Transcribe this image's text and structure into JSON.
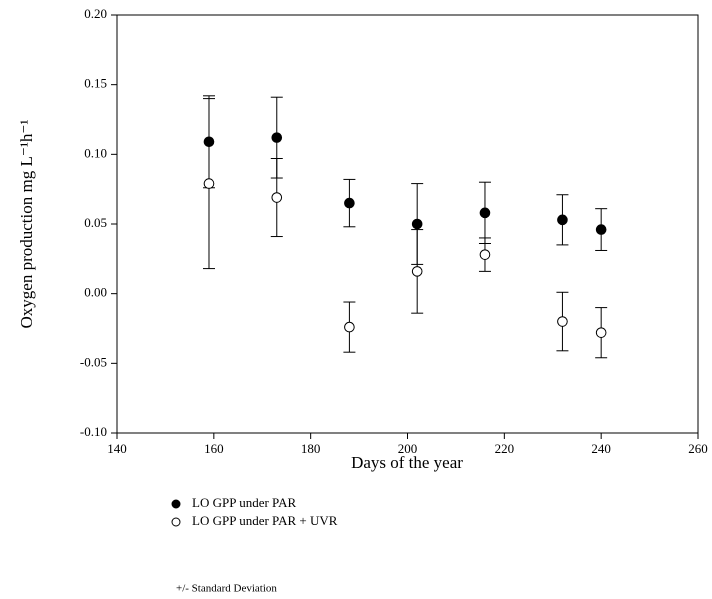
{
  "chart_data": {
    "type": "scatter",
    "x_label": "Days of the year",
    "y_label": "Oxygen production mg L⁻¹h⁻¹",
    "xlim": [
      140,
      260
    ],
    "xticks": [
      140,
      160,
      180,
      200,
      220,
      240,
      260
    ],
    "ylim": [
      -0.1,
      0.2
    ],
    "yticks": [
      {
        "value": -0.1,
        "label": "-0.10"
      },
      {
        "value": -0.05,
        "label": "-0.05"
      },
      {
        "value": 0,
        "label": "0.00"
      },
      {
        "value": 0.05,
        "label": "0.05"
      },
      {
        "value": 0.1,
        "label": "0.10"
      },
      {
        "value": 0.15,
        "label": "0.15"
      },
      {
        "value": 0.2,
        "label": "0.20"
      }
    ],
    "x": [
      159,
      173,
      188,
      202,
      216,
      232,
      240
    ],
    "series": [
      {
        "name": "LO GPP under PAR",
        "color": "#000000",
        "filled": true,
        "values": [
          0.109,
          0.112,
          0.065,
          0.05,
          0.058,
          0.053,
          0.046
        ],
        "errors": [
          0.033,
          0.029,
          0.017,
          0.029,
          0.022,
          0.018,
          0.015
        ]
      },
      {
        "name": "LO GPP under  PAR + UVR",
        "color": "#000000",
        "filled": false,
        "values": [
          0.079,
          0.069,
          -0.024,
          0.016,
          0.028,
          -0.02,
          -0.028
        ],
        "errors": [
          0.061,
          0.028,
          0.018,
          0.03,
          0.012,
          0.021,
          0.018
        ]
      }
    ],
    "note": "+/- Standard Deviation"
  }
}
